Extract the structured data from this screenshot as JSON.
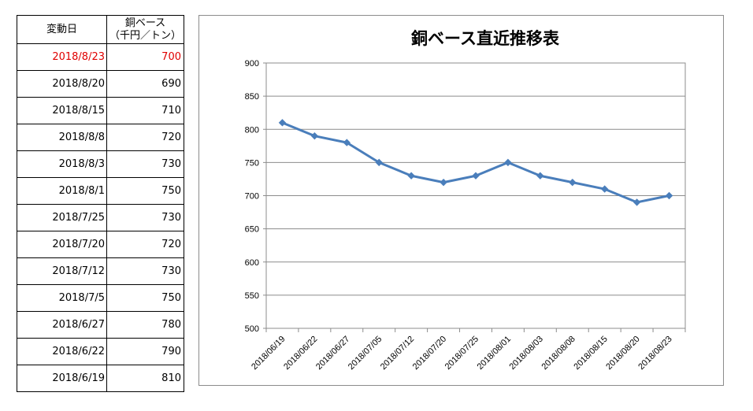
{
  "table": {
    "header_date": "変動日",
    "header_price_line1": "銅ベース",
    "header_price_line2": "（千円／トン）",
    "rows": [
      {
        "date": "2018/8/23",
        "price": "700"
      },
      {
        "date": "2018/8/20",
        "price": "690"
      },
      {
        "date": "2018/8/15",
        "price": "710"
      },
      {
        "date": "2018/8/8",
        "price": "720"
      },
      {
        "date": "2018/8/3",
        "price": "730"
      },
      {
        "date": "2018/8/1",
        "price": "750"
      },
      {
        "date": "2018/7/25",
        "price": "730"
      },
      {
        "date": "2018/7/20",
        "price": "720"
      },
      {
        "date": "2018/7/12",
        "price": "730"
      },
      {
        "date": "2018/7/5",
        "price": "750"
      },
      {
        "date": "2018/6/27",
        "price": "780"
      },
      {
        "date": "2018/6/22",
        "price": "790"
      },
      {
        "date": "2018/6/19",
        "price": "810"
      }
    ],
    "latest_color": "#e00000"
  },
  "chart_data": {
    "type": "line",
    "title": "銅ベース直近推移表",
    "xlabel": "",
    "ylabel": "",
    "categories": [
      "2018/06/19",
      "2018/06/22",
      "2018/06/27",
      "2018/07/05",
      "2018/07/12",
      "2018/07/20",
      "2018/07/25",
      "2018/08/01",
      "2018/08/03",
      "2018/08/08",
      "2018/08/15",
      "2018/08/20",
      "2018/08/23"
    ],
    "series": [
      {
        "values": [
          810,
          790,
          780,
          750,
          730,
          720,
          730,
          750,
          730,
          720,
          710,
          690,
          700
        ],
        "color": "#4a7ebb"
      }
    ],
    "ylim": [
      500,
      900
    ],
    "yticks": [
      500,
      550,
      600,
      650,
      700,
      750,
      800,
      850,
      900
    ],
    "grid": true,
    "legend": "none",
    "marker": "diamond"
  }
}
